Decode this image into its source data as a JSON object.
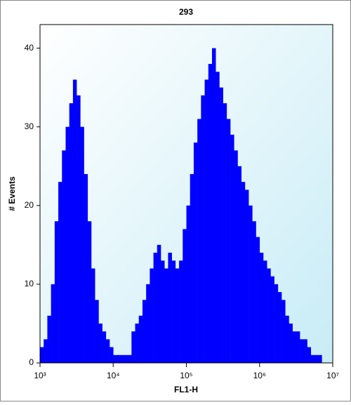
{
  "chart_data": {
    "type": "histogram",
    "title": "293",
    "x_label": "FL1-H",
    "y_label": "# Events",
    "bins": [
      1000,
      1122,
      1259,
      1413,
      1585,
      1778,
      1995,
      2239,
      2512,
      2818,
      3162,
      3548,
      3981,
      4467,
      5012,
      5623,
      6310,
      7079,
      7943,
      8913,
      10000,
      11220,
      12589,
      14125,
      15849,
      17783,
      19953,
      22387,
      25119,
      28184,
      31623,
      35481,
      39811,
      44668,
      50119,
      56234,
      63096,
      70795,
      79433,
      89125,
      100000,
      112202,
      125893,
      141254,
      158489,
      177828,
      199526,
      223872,
      251189,
      281838,
      316228,
      354813,
      398107,
      446684,
      501187,
      562341,
      630957,
      707946,
      794328,
      891251,
      1000000,
      1122018,
      1258925,
      1412538,
      1584893,
      1778279,
      1995262,
      2238721,
      2511886,
      2818383,
      3162278,
      3548134,
      3981072,
      4466836,
      5011872,
      5623413,
      6309573,
      7079458,
      7943282,
      8912509,
      10000000
    ],
    "values": [
      2,
      3,
      6,
      10,
      18,
      23,
      27,
      30,
      33,
      36,
      34,
      30,
      24,
      18,
      12,
      8,
      5,
      4,
      3,
      2,
      1,
      1,
      1,
      1,
      1,
      4,
      5,
      6,
      8,
      10,
      12,
      14,
      15,
      13,
      12,
      14,
      13,
      12,
      13,
      17,
      20,
      24,
      28,
      31,
      34,
      36,
      38,
      40,
      37,
      35,
      33,
      31,
      29,
      27,
      25,
      23,
      22,
      20,
      18,
      16,
      14,
      13,
      12,
      11,
      10,
      9,
      8,
      6,
      5,
      4,
      4,
      3,
      3,
      2,
      1,
      1,
      1,
      0,
      0,
      0
    ],
    "color": "#0000ff",
    "log_x": true,
    "xlim": [
      1000,
      10000000
    ],
    "xticks": [
      {
        "value": 1000,
        "label": "10³"
      },
      {
        "value": 10000,
        "label": "10⁴"
      },
      {
        "value": 100000,
        "label": "10⁵"
      },
      {
        "value": 1000000,
        "label": "10⁶"
      },
      {
        "value": 10000000,
        "label": "10⁷"
      }
    ],
    "ylim": [
      0,
      43
    ],
    "yticks": [
      0,
      10,
      20,
      30,
      40
    ]
  }
}
